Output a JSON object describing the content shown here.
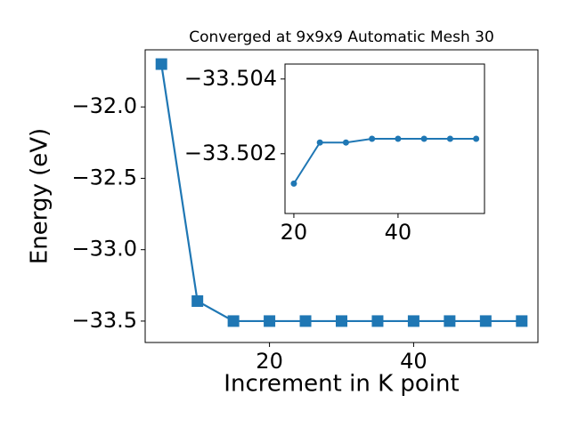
{
  "chart_data": [
    {
      "type": "line",
      "title": "Converged at 9x9x9 Automatic Mesh 30",
      "xlabel": "Increment in K point",
      "ylabel": "Energy (eV)",
      "x": [
        5,
        10,
        15,
        20,
        25,
        30,
        35,
        40,
        45,
        50,
        55
      ],
      "series": [
        {
          "color": "#1f77b4",
          "marker": "square",
          "values": [
            -31.7,
            -33.36,
            -33.5,
            -33.5,
            -33.5,
            -33.5,
            -33.5,
            -33.5,
            -33.5,
            -33.5,
            -33.5
          ]
        }
      ],
      "xlim": [
        2.75,
        57.25
      ],
      "ylim": [
        -33.65,
        -31.6
      ],
      "xticks": [
        20,
        40
      ],
      "yticks": [
        {
          "value": -32,
          "label": "−32.0"
        },
        {
          "value": -32.5,
          "label": "−32.5"
        },
        {
          "value": -33,
          "label": "−33.0"
        },
        {
          "value": -33.5,
          "label": "−33.5"
        }
      ]
    },
    {
      "type": "line",
      "x": [
        20,
        25,
        30,
        35,
        40,
        45,
        50,
        55
      ],
      "series": [
        {
          "color": "#1f77b4",
          "marker": "circle",
          "values": [
            -33.5012,
            -33.5023,
            -33.5023,
            -33.5024,
            -33.5024,
            -33.5024,
            -33.5024,
            -33.5024
          ]
        }
      ],
      "xlim": [
        18.3,
        56.6
      ],
      "ylim": [
        -33.5004,
        -33.5044
      ],
      "xticks": [
        20,
        40
      ],
      "yticks": [
        {
          "value": -33.504,
          "label": "−33.504"
        },
        {
          "value": -33.502,
          "label": "−33.502"
        }
      ]
    }
  ]
}
